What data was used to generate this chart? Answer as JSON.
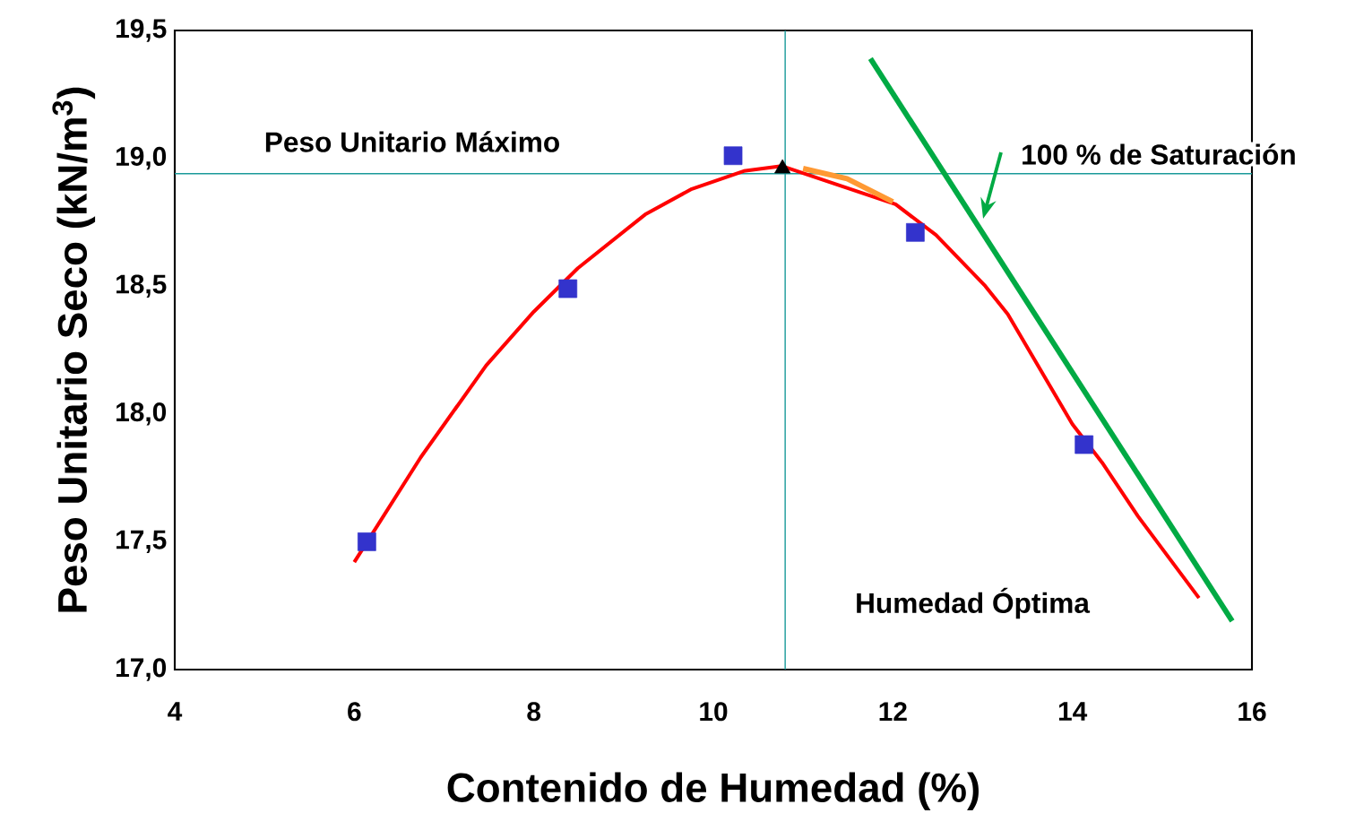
{
  "chart_data": {
    "type": "line",
    "xlabel": "Contenido de Humedad (%)",
    "ylabel": "Peso Unitario Seco (kN/m$^{3}$)",
    "xlim": [
      4,
      16
    ],
    "xticks": [
      4,
      6,
      8,
      10,
      12,
      14,
      16
    ],
    "ylim": [
      17.0,
      19.5
    ],
    "yticks": [
      {
        "value": 17.0,
        "label": "17,0"
      },
      {
        "value": 17.5,
        "label": "17,5"
      },
      {
        "value": 18.0,
        "label": "18,0"
      },
      {
        "value": 18.5,
        "label": "18,5"
      },
      {
        "value": 19.0,
        "label": "19,0"
      },
      {
        "value": 19.5,
        "label": "19,5"
      }
    ],
    "series": [
      {
        "color": "#ff0000",
        "marker": "none",
        "x": [
          6.0,
          6.74,
          7.47,
          8.0,
          8.49,
          9.24,
          9.76,
          10.34,
          10.76,
          11.49,
          12.03,
          12.48,
          13.03,
          13.28,
          14.0,
          14.33,
          14.73,
          15.41
        ],
        "values": [
          17.42,
          17.83,
          18.19,
          18.4,
          18.57,
          18.78,
          18.88,
          18.95,
          18.97,
          null,
          18.82,
          18.7,
          18.5,
          18.39,
          17.96,
          17.81,
          17.6,
          17.28
        ]
      },
      {
        "type": "line",
        "color": "#ff9933",
        "marker": "none",
        "x": [
          11.0,
          11.49,
          12.0
        ],
        "values": [
          18.96,
          18.92,
          18.83
        ]
      },
      {
        "type": "scatter",
        "color": "#3333cc",
        "marker": "square",
        "x": [
          6.14,
          8.38,
          10.22,
          12.25,
          14.13
        ],
        "values": [
          17.5,
          18.49,
          19.01,
          18.71,
          17.88
        ]
      },
      {
        "type": "scatter",
        "color": "#000000",
        "marker": "triangle",
        "x": [
          10.77
        ],
        "values": [
          18.96
        ]
      },
      {
        "type": "line",
        "color": "#00aa44",
        "marker": "none",
        "x": [
          11.75,
          15.78
        ],
        "values": [
          19.39,
          17.19
        ]
      }
    ],
    "ref_lines": [
      {
        "axis": "y",
        "value": 18.94,
        "color": "#1a9a9a"
      },
      {
        "axis": "x",
        "value": 10.8,
        "color": "#1a9a9a"
      }
    ],
    "annotations": [
      "Peso Unitario Máximo",
      "Humedad Óptima",
      "100 % de Saturación"
    ]
  }
}
